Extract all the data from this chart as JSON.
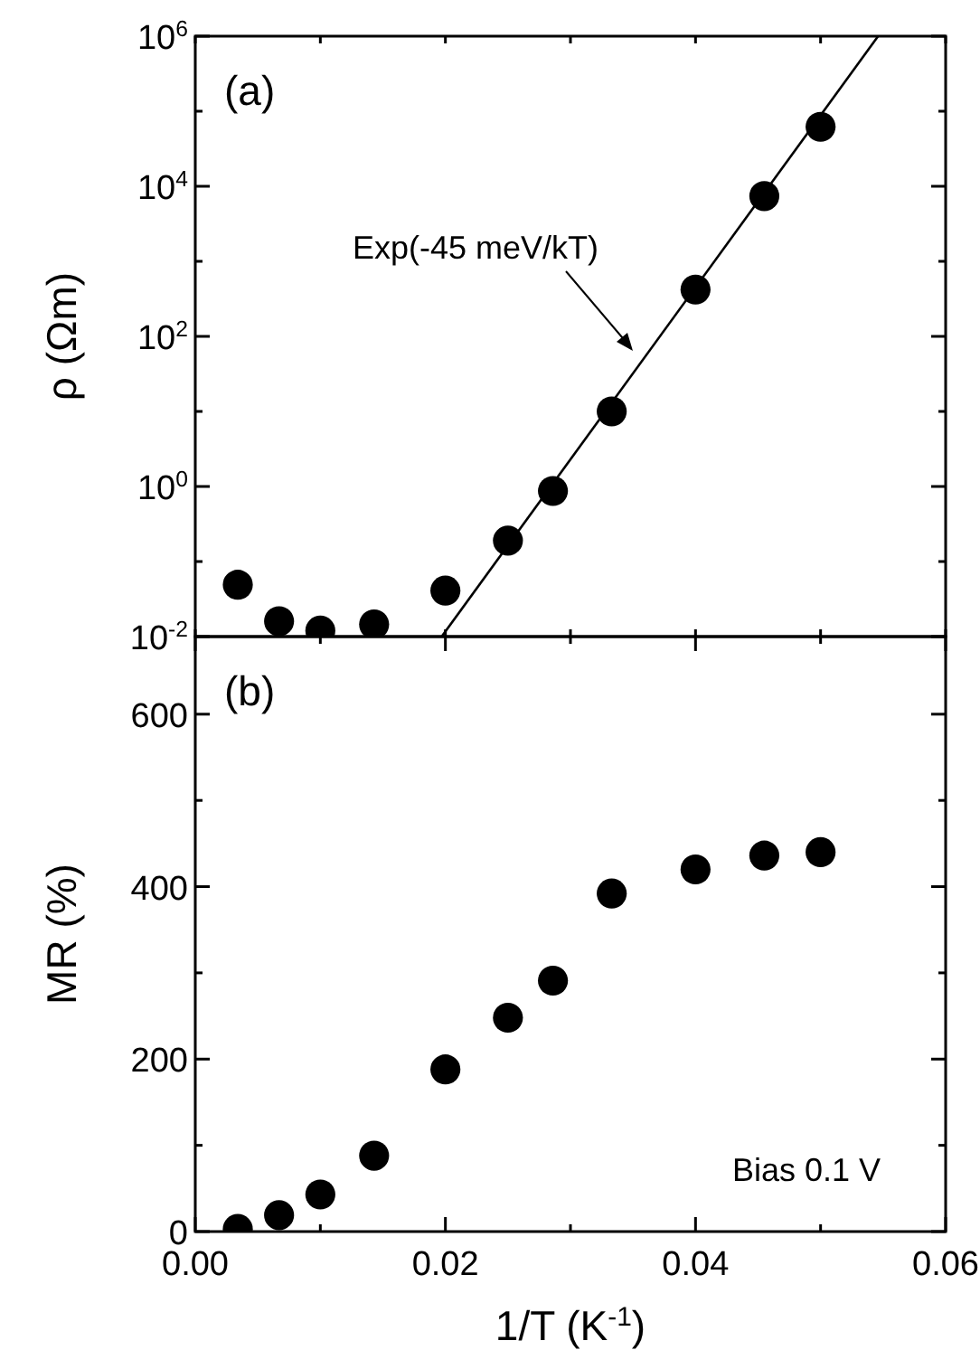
{
  "chart_data": [
    {
      "type": "scatter",
      "ylabel": "ρ (Ωm)",
      "log": "y",
      "marker": "circle",
      "tick_labels": "y",
      "xlim": [
        0,
        0.06
      ],
      "xticks": [
        {
          "value": 0,
          "label": null
        },
        {
          "value": 0.01,
          "label": null
        },
        {
          "value": 0.02,
          "label": null
        },
        {
          "value": 0.03,
          "label": null
        },
        {
          "value": 0.04,
          "label": null
        },
        {
          "value": 0.05,
          "label": null
        },
        {
          "value": 0.06,
          "label": null
        }
      ],
      "ylim": [
        0.01,
        1000000
      ],
      "yticks": [
        {
          "value": 0.01,
          "label": "10$^{-2}$"
        },
        {
          "value": 0.1,
          "label": null
        },
        {
          "value": 1,
          "label": "10$^{0}$"
        },
        {
          "value": 10,
          "label": null
        },
        {
          "value": 100,
          "label": "10$^{2}$"
        },
        {
          "value": 1000,
          "label": null
        },
        {
          "value": 10000,
          "label": "10$^{4}$"
        },
        {
          "value": 100000,
          "label": null
        },
        {
          "value": 1000000,
          "label": "10$^{6}$"
        }
      ],
      "series": [
        {
          "color": "#000000",
          "x": [
            0.0034,
            0.0067,
            0.01,
            0.0143,
            0.02,
            0.025,
            0.0286,
            0.0333,
            0.04,
            0.0455,
            0.05
          ],
          "values": [
            0.049,
            0.016,
            0.012,
            0.0145,
            0.041,
            0.19,
            0.87,
            10,
            420,
            7400,
            62000
          ]
        },
        {
          "type": "line",
          "color": "#000000",
          "marker": "none",
          "x": [
            0.0197,
            0.0546
          ],
          "values": [
            0.01,
            1000000
          ]
        }
      ],
      "annotations": [
        "(a)",
        "Exp(-45 meV/kT)"
      ]
    },
    {
      "type": "scatter",
      "xlabel": "1/T (K$^{-1}$)",
      "ylabel": "MR (%)",
      "marker": "circle",
      "xlim": [
        0,
        0.06
      ],
      "xticks": [
        {
          "value": 0,
          "label": "0.00"
        },
        {
          "value": 0.01,
          "label": null
        },
        {
          "value": 0.02,
          "label": "0.02"
        },
        {
          "value": 0.03,
          "label": null
        },
        {
          "value": 0.04,
          "label": "0.04"
        },
        {
          "value": 0.05,
          "label": null
        },
        {
          "value": 0.06,
          "label": "0.06"
        }
      ],
      "ylim": [
        0,
        690
      ],
      "yticks": [
        0,
        {
          "value": 100,
          "label": null
        },
        200,
        {
          "value": 300,
          "label": null
        },
        400,
        {
          "value": 500,
          "label": null
        },
        600
      ],
      "series": [
        {
          "color": "#000000",
          "x": [
            0.0034,
            0.0067,
            0.01,
            0.0143,
            0.02,
            0.025,
            0.0286,
            0.0333,
            0.04,
            0.0455,
            0.05
          ],
          "values": [
            3,
            19,
            43,
            88,
            188,
            248,
            291,
            392,
            420,
            436,
            440
          ]
        }
      ],
      "annotations": [
        "(b)",
        "Bias 0.1 V"
      ]
    }
  ]
}
